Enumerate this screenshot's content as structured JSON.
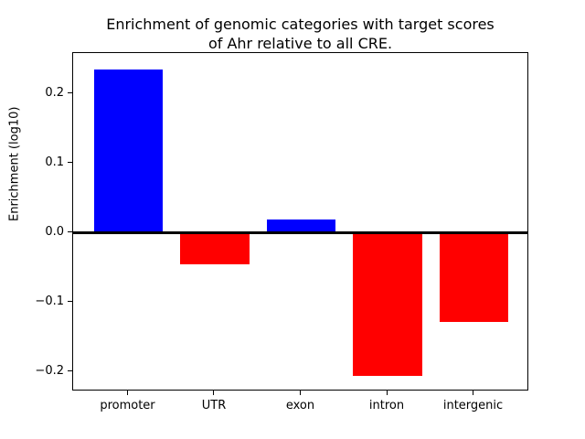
{
  "title": {
    "line1": "Enrichment of genomic categories with target scores",
    "line2": "of Ahr relative to all CRE."
  },
  "chart_data": {
    "type": "bar",
    "title": "Enrichment of genomic categories with target scores\nof Ahr relative to all CRE.",
    "categories": [
      "promoter",
      "UTR",
      "exon",
      "intron",
      "intergenic"
    ],
    "values": [
      0.235,
      -0.045,
      0.02,
      -0.205,
      -0.128
    ],
    "bar_colors": [
      "#0000ff",
      "#ff0000",
      "#0000ff",
      "#ff0000",
      "#ff0000"
    ],
    "xlabel": "",
    "ylabel": "Enrichment (log10)",
    "ylim": [
      -0.228,
      0.259
    ],
    "xlim": [
      -0.64,
      4.64
    ],
    "bar_width": 0.8,
    "yticks": [
      0.2,
      0.1,
      0.0,
      -0.1,
      -0.2
    ],
    "ytick_labels": [
      "0.2",
      "0.1",
      "0.0",
      "−0.1",
      "−0.2"
    ],
    "zero_line": true,
    "grid": false,
    "legend": null,
    "colors": {
      "positive": "#0000ff",
      "negative": "#ff0000",
      "axis": "#000000",
      "background": "#ffffff"
    }
  }
}
